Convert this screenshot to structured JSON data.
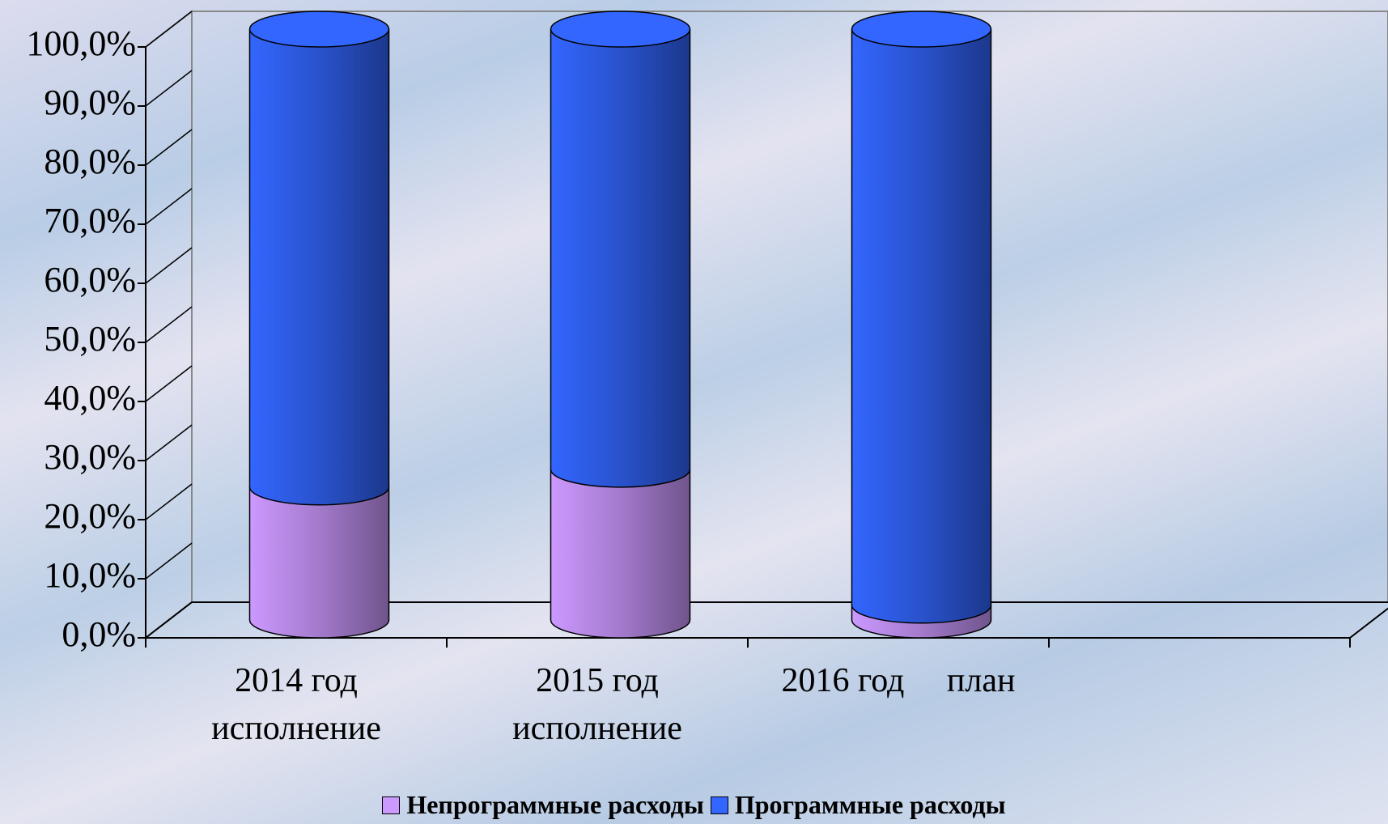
{
  "chart_data": {
    "type": "bar",
    "stacked": true,
    "categories": [
      "2014 год исполнение",
      "2015 год исполнение",
      "2016 год     план"
    ],
    "series": [
      {
        "name": "Непрограммные расходы",
        "color": "#cc99ff",
        "values": [
          22.5,
          25.5,
          2.5
        ]
      },
      {
        "name": "Программные расходы",
        "color": "#3366ff",
        "values": [
          77.5,
          74.5,
          97.5
        ]
      }
    ],
    "ylim": [
      0,
      100
    ],
    "yticks": [
      {
        "value": 0,
        "label": "0,0%"
      },
      {
        "value": 10,
        "label": "10,0%"
      },
      {
        "value": 20,
        "label": "20,0%"
      },
      {
        "value": 30,
        "label": "30,0%"
      },
      {
        "value": 40,
        "label": "40,0%"
      },
      {
        "value": 50,
        "label": "50,0%"
      },
      {
        "value": 60,
        "label": "60,0%"
      },
      {
        "value": 70,
        "label": "70,0%"
      },
      {
        "value": 80,
        "label": "80,0%"
      },
      {
        "value": 90,
        "label": "90,0%"
      },
      {
        "value": 100,
        "label": "100,0%"
      }
    ],
    "legend": "bottom"
  }
}
